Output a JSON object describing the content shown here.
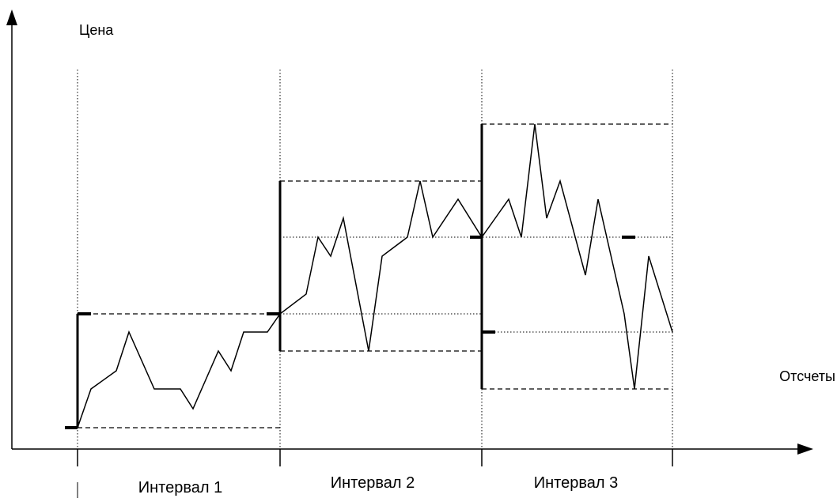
{
  "axes": {
    "y_label": "Цена",
    "x_label": "Отсчеты"
  },
  "intervals": [
    {
      "label": "Интервал 1"
    },
    {
      "label": "Интервал 2"
    },
    {
      "label": "Интервал 3"
    }
  ],
  "colors": {
    "line": "#000000",
    "background": "#ffffff"
  }
}
